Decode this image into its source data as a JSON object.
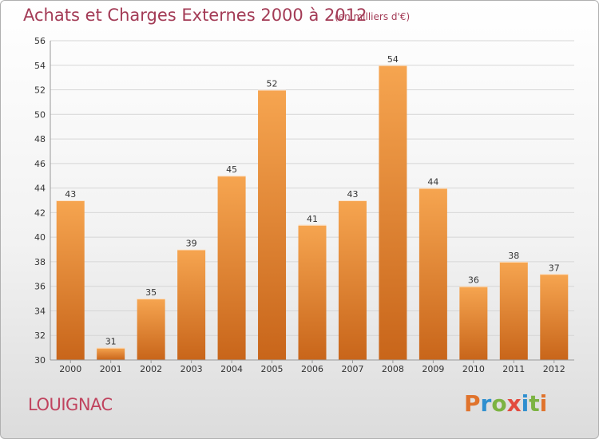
{
  "header": {
    "title": "Achats et Charges Externes 2000 à 2012",
    "unit": "(en milliers d'€)"
  },
  "footer": {
    "commune": "LOUIGNAC",
    "logo": "Proxiti"
  },
  "colors": {
    "bar_light": "#f6a550",
    "bar_dark": "#c8651a",
    "title": "#a33b56",
    "logo_letters": [
      "#e0732c",
      "#2f8fcf",
      "#7cb342",
      "#e34b3f",
      "#2f8fcf",
      "#7cb342",
      "#e0732c"
    ]
  },
  "chart_data": {
    "type": "bar",
    "title": "Achats et Charges Externes 2000 à 2012",
    "subtitle": "(en milliers d'€)",
    "xlabel": "",
    "ylabel": "",
    "categories": [
      "2000",
      "2001",
      "2002",
      "2003",
      "2004",
      "2005",
      "2006",
      "2007",
      "2008",
      "2009",
      "2010",
      "2011",
      "2012"
    ],
    "values": [
      43,
      31,
      35,
      39,
      45,
      52,
      41,
      43,
      54,
      44,
      36,
      38,
      37
    ],
    "ylim": [
      30,
      56
    ],
    "yticks": [
      30,
      32,
      34,
      36,
      38,
      40,
      42,
      44,
      46,
      48,
      50,
      52,
      54,
      56
    ],
    "grid": true,
    "data_labels": true
  }
}
